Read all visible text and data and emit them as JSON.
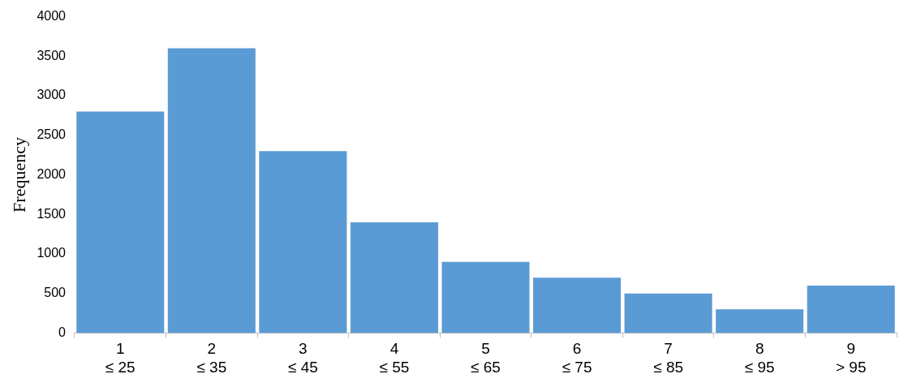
{
  "chart_data": {
    "type": "bar",
    "ylabel": "Frequency",
    "categories": [
      "1\n≤ 25",
      "2\n≤ 35",
      "3\n≤ 45",
      "4\n≤ 55",
      "5\n≤ 65",
      "6\n≤ 75",
      "7\n≤ 85",
      "8\n≤ 95",
      "9\n> 95"
    ],
    "values": [
      2800,
      3600,
      2300,
      1400,
      900,
      700,
      500,
      300,
      600
    ],
    "color": "#5b9bd5",
    "ylim": [
      0,
      4000
    ],
    "yticks": [
      0,
      500,
      1000,
      1500,
      2000,
      2500,
      3000,
      3500,
      4000
    ],
    "grid": false,
    "legend": false
  }
}
